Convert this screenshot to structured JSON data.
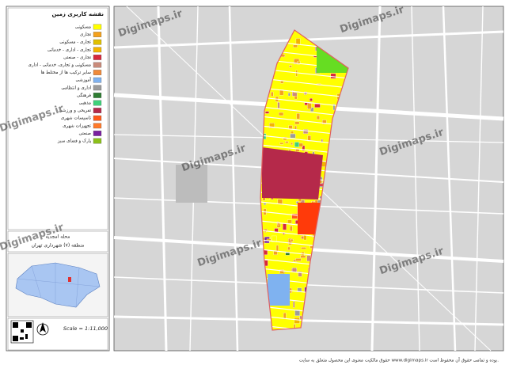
{
  "legend": {
    "title": "نقشه کاربری زمین",
    "items": [
      {
        "label": "مسکونی",
        "color": "#ffff00"
      },
      {
        "label": "تجاری",
        "color": "#f4a11c"
      },
      {
        "label": "تجاری - مسکونی",
        "color": "#e0c000"
      },
      {
        "label": "تجاری - اداری - خدماتی",
        "color": "#f3b400"
      },
      {
        "label": "تجاری - صنعتی",
        "color": "#d6283c"
      },
      {
        "label": "مسکونی و تجاری، خدماتی - اداری",
        "color": "#c98a7a"
      },
      {
        "label": "سایر ترکیب ها از مختلط ها",
        "color": "#f08a3a"
      },
      {
        "label": "آموزشی",
        "color": "#7fb2f0"
      },
      {
        "label": "اداری و انتظامی",
        "color": "#9c9c9c"
      },
      {
        "label": "فرهنگی",
        "color": "#2e7d32"
      },
      {
        "label": "مذهبی",
        "color": "#3fd17a"
      },
      {
        "label": "تفریحی و ورزشی",
        "color": "#b5294a"
      },
      {
        "label": "تاسیسات شهری",
        "color": "#ff5a1a"
      },
      {
        "label": "تجهیزات شهری",
        "color": "#ff7a2a"
      },
      {
        "label": "صنعتی",
        "color": "#7a1fa0"
      },
      {
        "label": "پارک و فضای سبز",
        "color": "#8bbf1a"
      }
    ]
  },
  "location": {
    "neighborhood": "محله امجدیه",
    "district": "منطقه (۷) شهرداری تهران"
  },
  "scale": "Scale = 1:11,000",
  "watermark": "Digimaps.ir",
  "footer": "حقوق مالکیت معنوی این محصول متعلق به سایت www.digimaps.ir بوده و تمامی حقوق آن محفوظ است."
}
